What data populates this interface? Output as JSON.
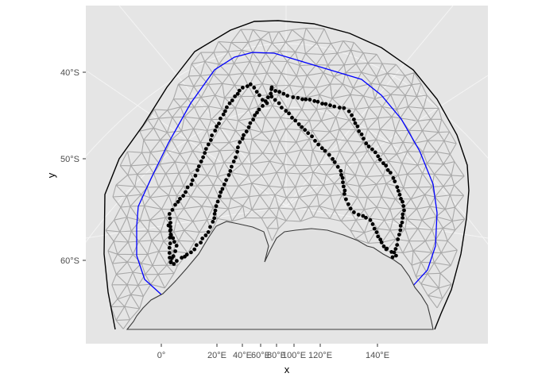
{
  "colors": {
    "panel_background": "#e5e5e5",
    "graticule": "#f4f4f4",
    "mesh": "#a8a8a8",
    "land_fill": "#e0e0e0",
    "land_outline": "#3a3a3a",
    "outer_boundary": "#000000",
    "inner_boundary": "#0000ff",
    "track_points": "#000000"
  },
  "axes": {
    "x_title": "x",
    "y_title": "y",
    "x_ticks": [
      "0°",
      "20°E",
      "40°E",
      "60°E",
      "80°E",
      "100°E",
      "120°E",
      "140°E"
    ],
    "y_ticks": [
      "40°S",
      "50°S",
      "60°S"
    ]
  },
  "layers": [
    "graticule",
    "triangular mesh",
    "outer boundary",
    "inner boundary",
    "land",
    "track points"
  ]
}
